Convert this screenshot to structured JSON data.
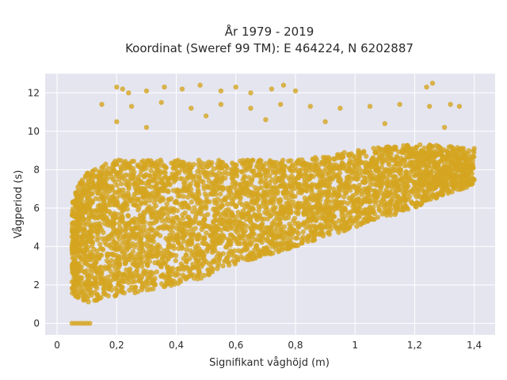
{
  "chart_data": {
    "type": "scatter",
    "title_line1": "År 1979 - 2019",
    "title_line2": "Koordinat (Sweref 99 TM): E 464224, N 6202887",
    "xlabel": "Signifikant våghöjd (m)",
    "ylabel": "Vågperiod (s)",
    "xlim": [
      -0.04,
      1.47
    ],
    "ylim": [
      -0.6,
      13.0
    ],
    "xticks": [
      0,
      0.2,
      0.4,
      0.6,
      0.8,
      1.0,
      1.2,
      1.4
    ],
    "xtick_labels": [
      "0",
      "0,2",
      "0,4",
      "0,6",
      "0,8",
      "1",
      "1,2",
      "1,4"
    ],
    "yticks": [
      0,
      2,
      4,
      6,
      8,
      10,
      12
    ],
    "ytick_labels": [
      "0",
      "2",
      "4",
      "6",
      "8",
      "10",
      "12"
    ],
    "grid": true,
    "legend": "none",
    "colors": {
      "marker": "#d4a520",
      "plot_background": "#e5e5f0",
      "grid": "#ffffff"
    },
    "density_envelope": {
      "x": [
        0.05,
        0.1,
        0.2,
        0.3,
        0.4,
        0.5,
        0.6,
        0.7,
        0.8,
        0.9,
        1.0,
        1.1,
        1.2,
        1.3,
        1.4
      ],
      "y_lower": [
        1.5,
        1.1,
        1.4,
        1.7,
        2.0,
        2.4,
        3.1,
        3.5,
        4.0,
        4.5,
        5.0,
        5.5,
        6.0,
        6.7,
        7.2
      ],
      "y_upper": [
        6.5,
        8.0,
        8.5,
        8.5,
        8.5,
        8.5,
        8.5,
        8.5,
        8.5,
        8.7,
        9.0,
        9.2,
        9.3,
        9.3,
        9.0
      ]
    },
    "outliers": [
      {
        "x": 0.05,
        "y": 0.0
      },
      {
        "x": 0.06,
        "y": 0.0
      },
      {
        "x": 0.07,
        "y": 0.0
      },
      {
        "x": 0.08,
        "y": 0.0
      },
      {
        "x": 0.09,
        "y": 0.0
      },
      {
        "x": 0.1,
        "y": 0.0
      },
      {
        "x": 0.11,
        "y": 0.0
      },
      {
        "x": 0.2,
        "y": 12.3
      },
      {
        "x": 0.22,
        "y": 12.2
      },
      {
        "x": 0.24,
        "y": 12.0
      },
      {
        "x": 0.3,
        "y": 12.1
      },
      {
        "x": 0.36,
        "y": 12.3
      },
      {
        "x": 0.42,
        "y": 12.2
      },
      {
        "x": 0.48,
        "y": 12.4
      },
      {
        "x": 0.55,
        "y": 12.1
      },
      {
        "x": 0.6,
        "y": 12.3
      },
      {
        "x": 0.65,
        "y": 12.0
      },
      {
        "x": 0.72,
        "y": 12.2
      },
      {
        "x": 0.76,
        "y": 12.4
      },
      {
        "x": 0.8,
        "y": 12.1
      },
      {
        "x": 1.26,
        "y": 12.5
      },
      {
        "x": 1.24,
        "y": 12.3
      },
      {
        "x": 0.15,
        "y": 11.4
      },
      {
        "x": 0.25,
        "y": 11.3
      },
      {
        "x": 0.35,
        "y": 11.5
      },
      {
        "x": 0.45,
        "y": 11.2
      },
      {
        "x": 0.55,
        "y": 11.4
      },
      {
        "x": 0.65,
        "y": 11.2
      },
      {
        "x": 0.75,
        "y": 11.4
      },
      {
        "x": 0.85,
        "y": 11.3
      },
      {
        "x": 0.95,
        "y": 11.2
      },
      {
        "x": 1.05,
        "y": 11.3
      },
      {
        "x": 1.15,
        "y": 11.4
      },
      {
        "x": 1.25,
        "y": 11.3
      },
      {
        "x": 1.32,
        "y": 11.4
      },
      {
        "x": 1.35,
        "y": 11.3
      },
      {
        "x": 0.5,
        "y": 10.8
      },
      {
        "x": 0.7,
        "y": 10.6
      },
      {
        "x": 0.9,
        "y": 10.5
      },
      {
        "x": 1.1,
        "y": 10.4
      },
      {
        "x": 1.3,
        "y": 10.2
      },
      {
        "x": 1.4,
        "y": 9.1
      },
      {
        "x": 0.2,
        "y": 10.5
      },
      {
        "x": 0.3,
        "y": 10.2
      }
    ]
  }
}
